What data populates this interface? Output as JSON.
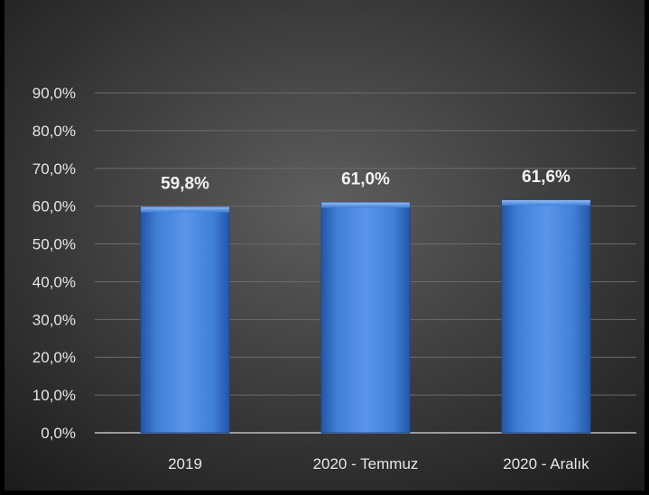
{
  "chart_data": {
    "type": "bar",
    "title": "",
    "xlabel": "",
    "ylabel": "",
    "categories": [
      "2019",
      "2020 - Temmuz",
      "2020 - Aralık"
    ],
    "values": [
      59.8,
      61.0,
      61.6
    ],
    "data_labels": [
      "59,8%",
      "61,0%",
      "61,6%"
    ],
    "ylim": [
      0,
      90
    ],
    "yticks": [
      0,
      10,
      20,
      30,
      40,
      50,
      60,
      70,
      80,
      90
    ],
    "ytick_labels": [
      "0,0%",
      "10,0%",
      "20,0%",
      "30,0%",
      "40,0%",
      "50,0%",
      "60,0%",
      "70,0%",
      "80,0%",
      "90,0%"
    ],
    "grid": true,
    "legend": "none",
    "colors": {
      "bar_light": "#6fa3f0",
      "bar_mid": "#3f7fd6",
      "bar_dark": "#2356a8",
      "background_center": "#5e5e5e",
      "background_edge": "#1c1c1c",
      "grid": "#6a6a6a",
      "axis": "#bfbfbf",
      "text": "#e6e6e6"
    }
  }
}
